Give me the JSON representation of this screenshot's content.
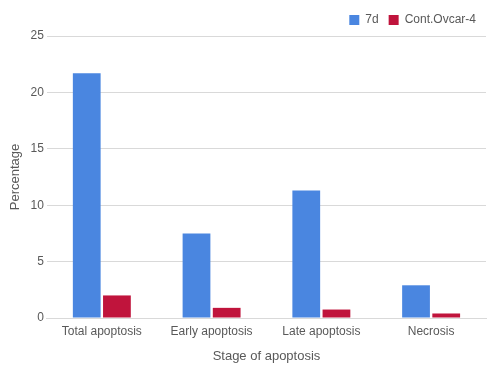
{
  "chart_data": {
    "type": "bar",
    "x_label": "Stage of apoptosis",
    "y_label": "Percentage",
    "categories": [
      "Total apoptosis",
      "Early apoptosis",
      "Late apoptosis",
      "Necrosis"
    ],
    "series": [
      {
        "name": "7d",
        "color": "#4a86e0",
        "values": [
          21.7,
          7.5,
          11.3,
          2.9
        ]
      },
      {
        "name": "Cont.Ovcar-4",
        "color": "#c0143c",
        "values": [
          2.0,
          0.9,
          0.75,
          0.4
        ]
      }
    ],
    "ylim": [
      0,
      25
    ],
    "yticks": [
      0,
      5,
      10,
      15,
      20,
      25
    ],
    "grid": true,
    "legend": "top-right"
  }
}
